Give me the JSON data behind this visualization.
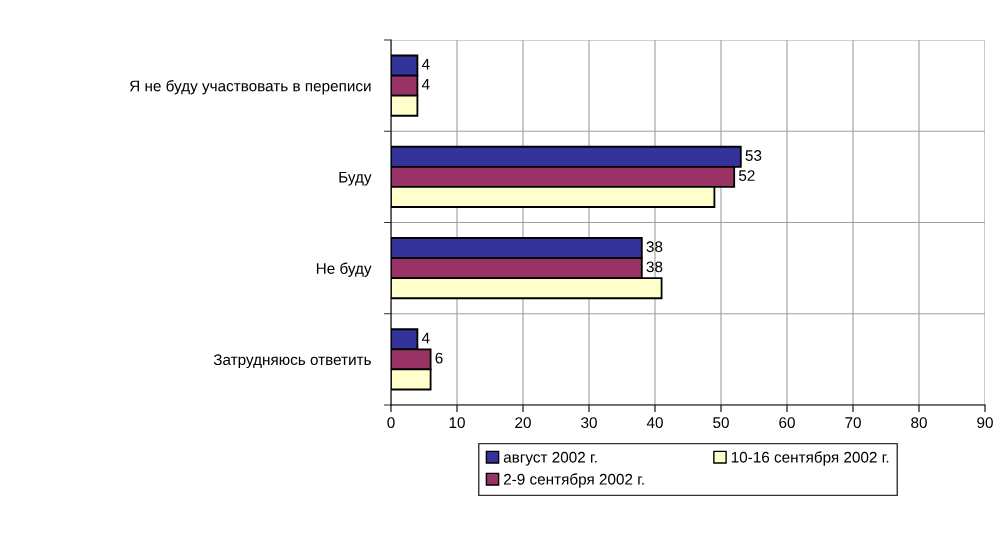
{
  "chart_data": {
    "type": "bar",
    "orientation": "horizontal",
    "categories": [
      "Я не буду участвовать в переписи",
      "Буду",
      "Не буду",
      "Затрудняюсь ответить"
    ],
    "series": [
      {
        "name": "август 2002 г.",
        "color": "#333399",
        "values": [
          4,
          53,
          38,
          4
        ],
        "value_labels": [
          "4",
          "53",
          "38",
          "4"
        ]
      },
      {
        "name": "2-9 сентября 2002 г.",
        "color": "#993366",
        "values": [
          4,
          52,
          38,
          6
        ],
        "value_labels": [
          "4",
          "52",
          "38",
          "6"
        ]
      },
      {
        "name": "10-16 сентября 2002 г.",
        "color": "#ffffcc",
        "values": [
          4,
          49,
          41,
          6
        ],
        "value_labels": [
          null,
          null,
          null,
          null
        ]
      }
    ],
    "xlim": [
      0,
      90
    ],
    "xticks": [
      0,
      10,
      20,
      30,
      40,
      50,
      60,
      70,
      80,
      90
    ],
    "grid": true,
    "legend": "bottom"
  }
}
